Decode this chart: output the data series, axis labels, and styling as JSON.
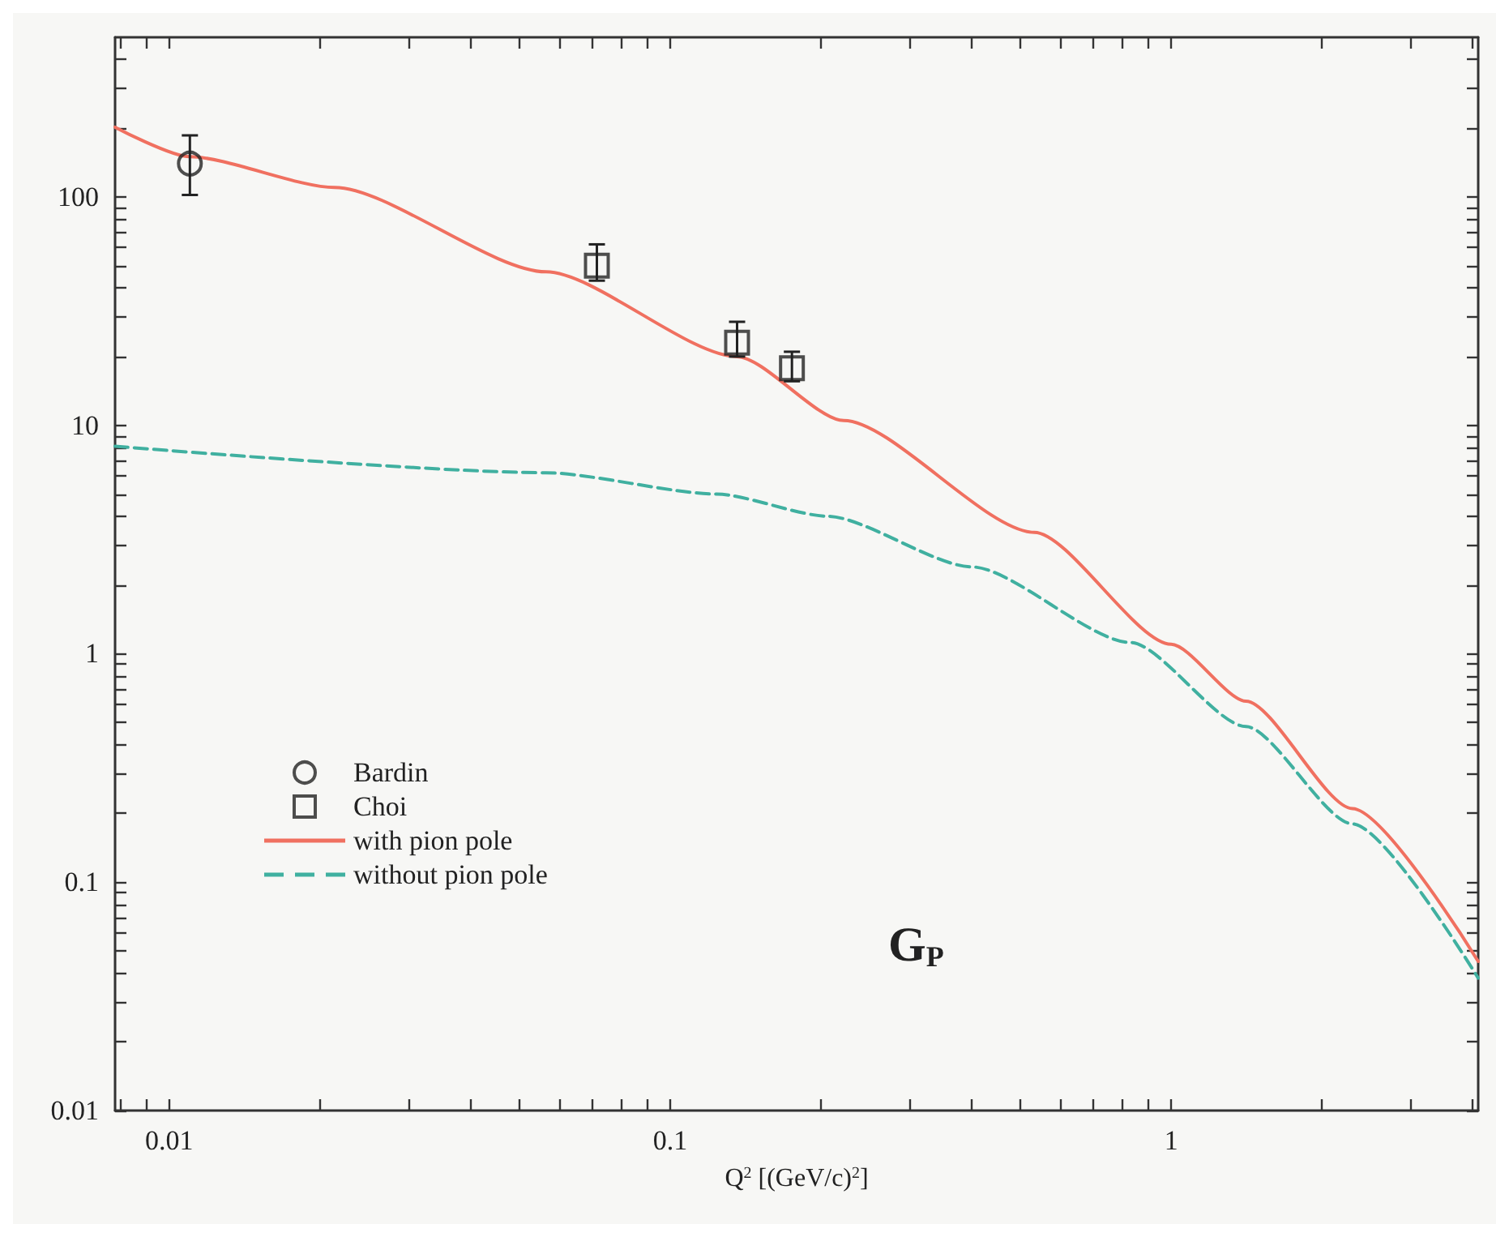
{
  "chart_data": {
    "type": "scatter",
    "xlabel": "Q$^{2}$ [(GeV/c)$^{2}$]",
    "log": "xy",
    "xlim": [
      0.0078,
      4.1
    ],
    "ylim": [
      0.01,
      500
    ],
    "xticks": [
      {
        "value": 0.008,
        "label": null
      },
      {
        "value": 0.009,
        "label": null
      },
      {
        "value": 0.01,
        "label": "0.01"
      },
      {
        "value": 0.02,
        "label": null
      },
      {
        "value": 0.03,
        "label": null
      },
      {
        "value": 0.04,
        "label": null
      },
      {
        "value": 0.05,
        "label": null
      },
      {
        "value": 0.06,
        "label": null
      },
      {
        "value": 0.07,
        "label": null
      },
      {
        "value": 0.08,
        "label": null
      },
      {
        "value": 0.09,
        "label": null
      },
      {
        "value": 0.1,
        "label": "0.1"
      },
      {
        "value": 0.2,
        "label": null
      },
      {
        "value": 0.3,
        "label": null
      },
      {
        "value": 0.4,
        "label": null
      },
      {
        "value": 0.5,
        "label": null
      },
      {
        "value": 0.6,
        "label": null
      },
      {
        "value": 0.7,
        "label": null
      },
      {
        "value": 0.8,
        "label": null
      },
      {
        "value": 0.9,
        "label": null
      },
      {
        "value": 1,
        "label": "1"
      },
      {
        "value": 2,
        "label": null
      },
      {
        "value": 3,
        "label": null
      },
      {
        "value": 4,
        "label": null
      }
    ],
    "yticks": [
      {
        "value": 0.01,
        "label": "0.01"
      },
      {
        "value": 0.02,
        "label": null
      },
      {
        "value": 0.03,
        "label": null
      },
      {
        "value": 0.04,
        "label": null
      },
      {
        "value": 0.05,
        "label": null
      },
      {
        "value": 0.06,
        "label": null
      },
      {
        "value": 0.07,
        "label": null
      },
      {
        "value": 0.08,
        "label": null
      },
      {
        "value": 0.09,
        "label": null
      },
      {
        "value": 0.1,
        "label": "0.1"
      },
      {
        "value": 0.2,
        "label": null
      },
      {
        "value": 0.3,
        "label": null
      },
      {
        "value": 0.4,
        "label": null
      },
      {
        "value": 0.5,
        "label": null
      },
      {
        "value": 0.6,
        "label": null
      },
      {
        "value": 0.7,
        "label": null
      },
      {
        "value": 0.8,
        "label": null
      },
      {
        "value": 0.9,
        "label": null
      },
      {
        "value": 1,
        "label": "1"
      },
      {
        "value": 2,
        "label": null
      },
      {
        "value": 3,
        "label": null
      },
      {
        "value": 4,
        "label": null
      },
      {
        "value": 5,
        "label": null
      },
      {
        "value": 6,
        "label": null
      },
      {
        "value": 7,
        "label": null
      },
      {
        "value": 8,
        "label": null
      },
      {
        "value": 9,
        "label": null
      },
      {
        "value": 10,
        "label": "10"
      },
      {
        "value": 20,
        "label": null
      },
      {
        "value": 30,
        "label": null
      },
      {
        "value": 40,
        "label": null
      },
      {
        "value": 50,
        "label": null
      },
      {
        "value": 60,
        "label": null
      },
      {
        "value": 70,
        "label": null
      },
      {
        "value": 80,
        "label": null
      },
      {
        "value": 90,
        "label": null
      },
      {
        "value": 100,
        "label": "100"
      },
      {
        "value": 200,
        "label": null
      },
      {
        "value": 300,
        "label": null
      },
      {
        "value": 400,
        "label": null
      }
    ],
    "grid": false,
    "legend": "bottom left",
    "annotations": [
      "G$_{P}$"
    ],
    "series": [
      {
        "name": "Bardin",
        "marker": "circle",
        "color": "#222222",
        "x": [
          0.011
        ],
        "values": [
          140
        ],
        "errors": [
          [
            102,
            186
          ]
        ]
      },
      {
        "name": "Choi",
        "marker": "square",
        "color": "#222222",
        "x": [
          0.0714,
          0.136,
          0.175
        ],
        "values": [
          50,
          23,
          17.8
        ],
        "errors": [
          [
            43,
            62
          ],
          [
            20,
            28.4
          ],
          [
            15.6,
            21
          ]
        ]
      },
      {
        "name": "with pion pole",
        "type": "line",
        "marker": "none",
        "line_style": "solid",
        "color": "#f07060",
        "x": [
          0.0078,
          0.011,
          0.0214,
          0.0565,
          0.136,
          0.222,
          0.533,
          1.0,
          1.41,
          2.3,
          4.1
        ],
        "values": [
          202,
          150,
          110,
          47,
          20,
          10.5,
          3.4,
          1.1,
          0.62,
          0.21,
          0.045
        ]
      },
      {
        "name": "without pion pole",
        "type": "line",
        "marker": "none",
        "line_style": "dashed",
        "color": "#40b0a0",
        "x": [
          0.0078,
          0.0565,
          0.124,
          0.206,
          0.4,
          0.83,
          1.41,
          2.3,
          4.1
        ],
        "values": [
          8.1,
          6.2,
          5.0,
          4.0,
          2.4,
          1.12,
          0.48,
          0.18,
          0.038
        ]
      }
    ]
  }
}
